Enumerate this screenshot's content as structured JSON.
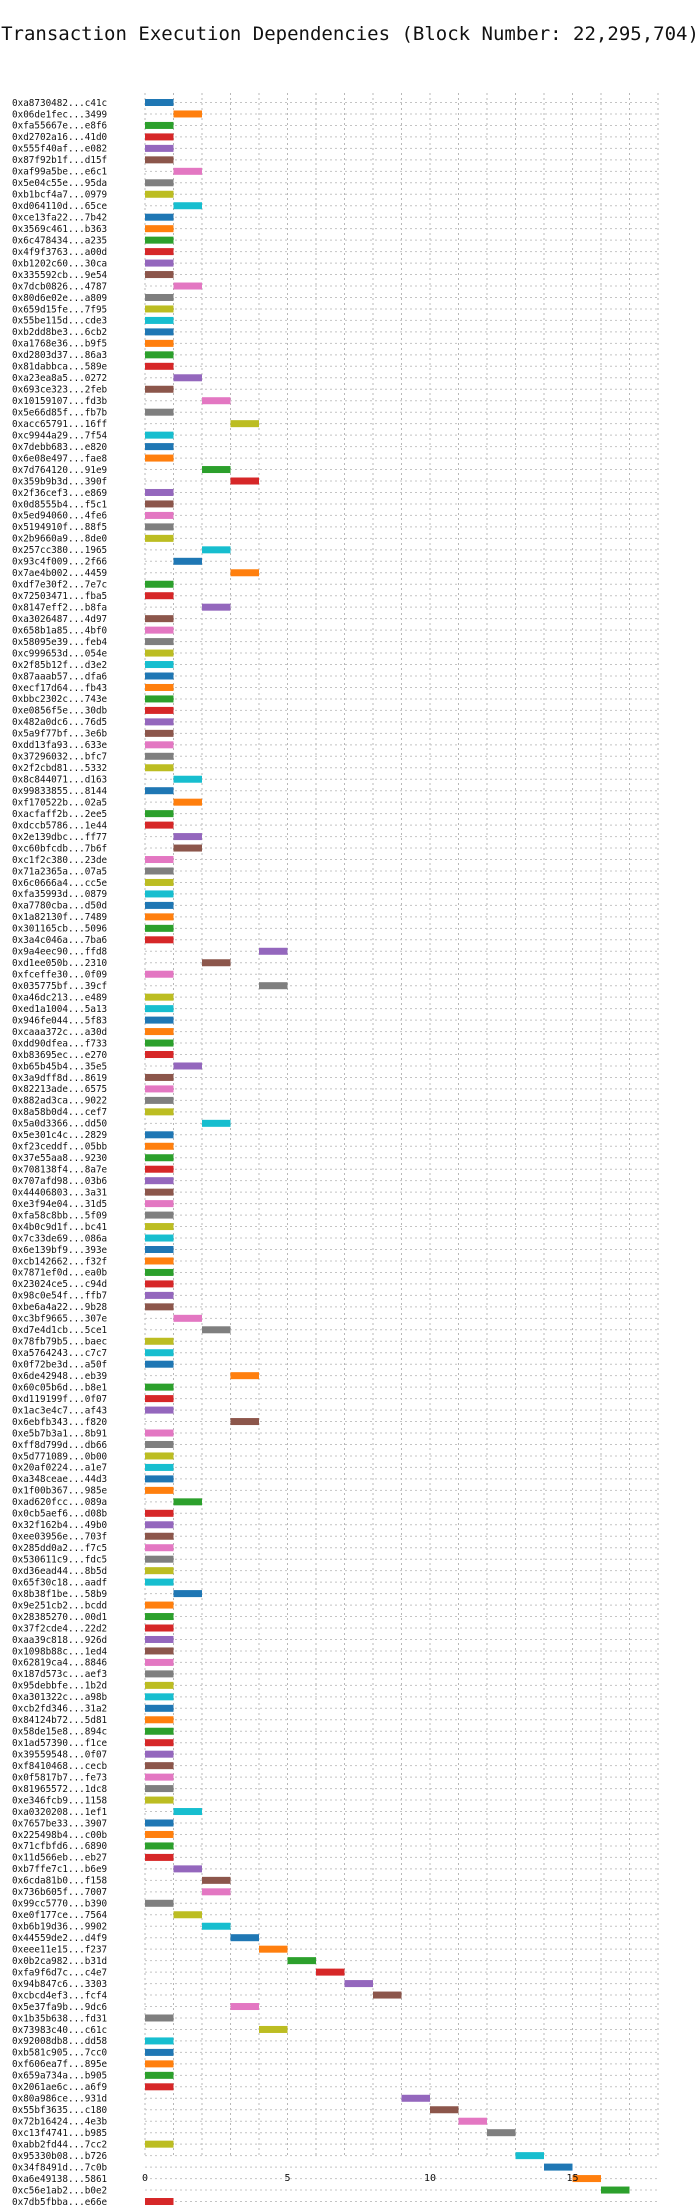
{
  "chart_data": {
    "type": "gantt",
    "title": "Transaction Execution Dependencies (Block Number: 22,295,704)",
    "xlabel": "",
    "ylabel": "",
    "xlim": [
      0,
      18
    ],
    "x_ticks": [
      0,
      5,
      10,
      15
    ],
    "grid": true,
    "palette": [
      "#1f77b4",
      "#ff7f0e",
      "#2ca02c",
      "#d62728",
      "#9467bd",
      "#8c564b",
      "#e377c2",
      "#7f7f7f",
      "#bcbd22",
      "#17becf"
    ],
    "transactions": [
      {
        "label": "0xa8730482...c41c",
        "start": 0
      },
      {
        "label": "0x06de1fec...3499",
        "start": 1
      },
      {
        "label": "0xfa55667e...e8f6",
        "start": 0
      },
      {
        "label": "0xd2702a16...41d0",
        "start": 0
      },
      {
        "label": "0x555f40af...e082",
        "start": 0
      },
      {
        "label": "0x87f92b1f...d15f",
        "start": 0
      },
      {
        "label": "0xaf99a5be...e6c1",
        "start": 1
      },
      {
        "label": "0x5e04c55e...95da",
        "start": 0
      },
      {
        "label": "0xb1bcf4a7...0979",
        "start": 0
      },
      {
        "label": "0xd064110d...65ce",
        "start": 1
      },
      {
        "label": "0xce13fa22...7b42",
        "start": 0
      },
      {
        "label": "0x3569c461...b363",
        "start": 0
      },
      {
        "label": "0x6c478434...a235",
        "start": 0
      },
      {
        "label": "0x4f9f3763...a00d",
        "start": 0
      },
      {
        "label": "0xb1202c60...30ca",
        "start": 0
      },
      {
        "label": "0x335592cb...9e54",
        "start": 0
      },
      {
        "label": "0x7dcb0826...4787",
        "start": 1
      },
      {
        "label": "0x80d6e02e...a809",
        "start": 0
      },
      {
        "label": "0x659d15fe...7f95",
        "start": 0
      },
      {
        "label": "0x55be115d...cde3",
        "start": 0
      },
      {
        "label": "0xb2dd8be3...6cb2",
        "start": 0
      },
      {
        "label": "0xa1768e36...b9f5",
        "start": 0
      },
      {
        "label": "0xd2803d37...86a3",
        "start": 0
      },
      {
        "label": "0x81dabbca...589e",
        "start": 0
      },
      {
        "label": "0xa23ea8a5...0272",
        "start": 1
      },
      {
        "label": "0x693ce323...2feb",
        "start": 0
      },
      {
        "label": "0x10159107...fd3b",
        "start": 2
      },
      {
        "label": "0x5e66d85f...fb7b",
        "start": 0
      },
      {
        "label": "0xacc65791...16ff",
        "start": 3
      },
      {
        "label": "0xc9944a29...7f54",
        "start": 0
      },
      {
        "label": "0x7debb683...e820",
        "start": 0
      },
      {
        "label": "0x6e08e497...fae8",
        "start": 0
      },
      {
        "label": "0x7d764120...91e9",
        "start": 2
      },
      {
        "label": "0x359b9b3d...390f",
        "start": 3
      },
      {
        "label": "0x2f36cef3...e869",
        "start": 0
      },
      {
        "label": "0x0d8555b4...f5c1",
        "start": 0
      },
      {
        "label": "0x5ed94060...4fe6",
        "start": 0
      },
      {
        "label": "0x5194910f...88f5",
        "start": 0
      },
      {
        "label": "0x2b9660a9...8de0",
        "start": 0
      },
      {
        "label": "0x257cc380...1965",
        "start": 2
      },
      {
        "label": "0x93c4f009...2f66",
        "start": 1
      },
      {
        "label": "0x7ae4b002...4459",
        "start": 3
      },
      {
        "label": "0xdf7e30f2...7e7c",
        "start": 0
      },
      {
        "label": "0x72503471...fba5",
        "start": 0
      },
      {
        "label": "0x8147eff2...b8fa",
        "start": 2
      },
      {
        "label": "0xa3026487...4d97",
        "start": 0
      },
      {
        "label": "0x658b1a85...4bf0",
        "start": 0
      },
      {
        "label": "0x58095e39...feb4",
        "start": 0
      },
      {
        "label": "0xc999653d...054e",
        "start": 0
      },
      {
        "label": "0x2f85b12f...d3e2",
        "start": 0
      },
      {
        "label": "0x87aaab57...dfa6",
        "start": 0
      },
      {
        "label": "0xecf17d64...fb43",
        "start": 0
      },
      {
        "label": "0xbbc2302c...743e",
        "start": 0
      },
      {
        "label": "0xe0856f5e...30db",
        "start": 0
      },
      {
        "label": "0x482a0dc6...76d5",
        "start": 0
      },
      {
        "label": "0x5a9f77bf...3e6b",
        "start": 0
      },
      {
        "label": "0xdd13fa93...633e",
        "start": 0
      },
      {
        "label": "0x37296032...bfc7",
        "start": 0
      },
      {
        "label": "0x2f2cbd81...5332",
        "start": 0
      },
      {
        "label": "0x8c844071...d163",
        "start": 1
      },
      {
        "label": "0x99833855...8144",
        "start": 0
      },
      {
        "label": "0xf170522b...02a5",
        "start": 1
      },
      {
        "label": "0xacfaff2b...2ee5",
        "start": 0
      },
      {
        "label": "0xdccb5786...1e44",
        "start": 0
      },
      {
        "label": "0x2e139dbc...ff77",
        "start": 1
      },
      {
        "label": "0xc60bfcdb...7b6f",
        "start": 1
      },
      {
        "label": "0xc1f2c380...23de",
        "start": 0
      },
      {
        "label": "0x71a2365a...07a5",
        "start": 0
      },
      {
        "label": "0x6c0666a4...cc5e",
        "start": 0
      },
      {
        "label": "0xfa35993d...0879",
        "start": 0
      },
      {
        "label": "0xa7780cba...d50d",
        "start": 0
      },
      {
        "label": "0x1a82130f...7489",
        "start": 0
      },
      {
        "label": "0x301165cb...5096",
        "start": 0
      },
      {
        "label": "0x3a4c046a...7ba6",
        "start": 0
      },
      {
        "label": "0x9a4eec90...ffd8",
        "start": 4
      },
      {
        "label": "0xd1ee050b...2310",
        "start": 2
      },
      {
        "label": "0xfceffe30...0f09",
        "start": 0
      },
      {
        "label": "0x035775bf...39cf",
        "start": 4
      },
      {
        "label": "0xa46dc213...e489",
        "start": 0
      },
      {
        "label": "0xed1a1004...5a13",
        "start": 0
      },
      {
        "label": "0x946fe044...5f83",
        "start": 0
      },
      {
        "label": "0xcaaa372c...a30d",
        "start": 0
      },
      {
        "label": "0xdd90dfea...f733",
        "start": 0
      },
      {
        "label": "0xb83695ec...e270",
        "start": 0
      },
      {
        "label": "0xb65b45b4...35e5",
        "start": 1
      },
      {
        "label": "0x3a9dff8d...8619",
        "start": 0
      },
      {
        "label": "0x82213ade...6575",
        "start": 0
      },
      {
        "label": "0x882ad3ca...9022",
        "start": 0
      },
      {
        "label": "0x8a58b0d4...cef7",
        "start": 0
      },
      {
        "label": "0x5a0d3366...dd50",
        "start": 2
      },
      {
        "label": "0x5e301c4c...2829",
        "start": 0
      },
      {
        "label": "0xf23ceddf...05bb",
        "start": 0
      },
      {
        "label": "0x37e55aa8...9230",
        "start": 0
      },
      {
        "label": "0x708138f4...8a7e",
        "start": 0
      },
      {
        "label": "0x707afd98...03b6",
        "start": 0
      },
      {
        "label": "0x44406803...3a31",
        "start": 0
      },
      {
        "label": "0xe3f94e04...31d5",
        "start": 0
      },
      {
        "label": "0xfa58c8bb...5f09",
        "start": 0
      },
      {
        "label": "0x4b0c9d1f...bc41",
        "start": 0
      },
      {
        "label": "0x7c33de69...086a",
        "start": 0
      },
      {
        "label": "0x6e139bf9...393e",
        "start": 0
      },
      {
        "label": "0xcb142662...f32f",
        "start": 0
      },
      {
        "label": "0x7871ef0d...ea0b",
        "start": 0
      },
      {
        "label": "0x23024ce5...c94d",
        "start": 0
      },
      {
        "label": "0x98c0e54f...ffb7",
        "start": 0
      },
      {
        "label": "0xbe6a4a22...9b28",
        "start": 0
      },
      {
        "label": "0xc3bf9665...307e",
        "start": 1
      },
      {
        "label": "0xd7e4d1cb...5ce1",
        "start": 2
      },
      {
        "label": "0x78fb79b5...baec",
        "start": 0
      },
      {
        "label": "0xa5764243...c7c7",
        "start": 0
      },
      {
        "label": "0x0f72be3d...a50f",
        "start": 0
      },
      {
        "label": "0x6de42948...eb39",
        "start": 3
      },
      {
        "label": "0x60c05b6d...b8e1",
        "start": 0
      },
      {
        "label": "0xd119199f...0f07",
        "start": 0
      },
      {
        "label": "0x1ac3e4c7...af43",
        "start": 0
      },
      {
        "label": "0x6ebfb343...f820",
        "start": 3
      },
      {
        "label": "0xe5b7b3a1...8b91",
        "start": 0
      },
      {
        "label": "0xff8d799d...db66",
        "start": 0
      },
      {
        "label": "0x5d771089...0b00",
        "start": 0
      },
      {
        "label": "0x20af0224...a1e7",
        "start": 0
      },
      {
        "label": "0xa348ceae...44d3",
        "start": 0
      },
      {
        "label": "0x1f00b367...985e",
        "start": 0
      },
      {
        "label": "0xad620fcc...089a",
        "start": 1
      },
      {
        "label": "0x0cb5aef6...d08b",
        "start": 0
      },
      {
        "label": "0x32f162b4...49b0",
        "start": 0
      },
      {
        "label": "0xee03956e...703f",
        "start": 0
      },
      {
        "label": "0x285dd0a2...f7c5",
        "start": 0
      },
      {
        "label": "0x530611c9...fdc5",
        "start": 0
      },
      {
        "label": "0xd36ead44...8b5d",
        "start": 0
      },
      {
        "label": "0x65f30c18...aadf",
        "start": 0
      },
      {
        "label": "0x8b38f1be...58b9",
        "start": 1
      },
      {
        "label": "0x9e251cb2...bcdd",
        "start": 0
      },
      {
        "label": "0x28385270...00d1",
        "start": 0
      },
      {
        "label": "0x37f2cde4...22d2",
        "start": 0
      },
      {
        "label": "0xaa39c818...926d",
        "start": 0
      },
      {
        "label": "0x1098b88c...1ed4",
        "start": 0
      },
      {
        "label": "0x62819ca4...8846",
        "start": 0
      },
      {
        "label": "0x187d573c...aef3",
        "start": 0
      },
      {
        "label": "0x95debbfe...1b2d",
        "start": 0
      },
      {
        "label": "0xa301322c...a98b",
        "start": 0
      },
      {
        "label": "0xcb2fd346...31a2",
        "start": 0
      },
      {
        "label": "0x84124b72...5d81",
        "start": 0
      },
      {
        "label": "0x58de15e8...894c",
        "start": 0
      },
      {
        "label": "0x1ad57390...f1ce",
        "start": 0
      },
      {
        "label": "0x39559548...0f07",
        "start": 0
      },
      {
        "label": "0xf8410468...cecb",
        "start": 0
      },
      {
        "label": "0x0f5817b7...fe73",
        "start": 0
      },
      {
        "label": "0x81965572...1dc8",
        "start": 0
      },
      {
        "label": "0xe346fcb9...1158",
        "start": 0
      },
      {
        "label": "0xa0320208...1ef1",
        "start": 1
      },
      {
        "label": "0x7657be33...3907",
        "start": 0
      },
      {
        "label": "0x225498b4...c00b",
        "start": 0
      },
      {
        "label": "0x71cfbfd6...6890",
        "start": 0
      },
      {
        "label": "0x11d566eb...eb27",
        "start": 0
      },
      {
        "label": "0xb7ffe7c1...b6e9",
        "start": 1
      },
      {
        "label": "0x6cda81b0...f158",
        "start": 2
      },
      {
        "label": "0x736b605f...7007",
        "start": 2
      },
      {
        "label": "0x99cc5770...b390",
        "start": 0
      },
      {
        "label": "0xe0f177ce...7564",
        "start": 1
      },
      {
        "label": "0xb6b19d36...9902",
        "start": 2
      },
      {
        "label": "0x44559de2...d4f9",
        "start": 3
      },
      {
        "label": "0xeee11e15...f237",
        "start": 4
      },
      {
        "label": "0x0b2ca982...b31d",
        "start": 5
      },
      {
        "label": "0xfa9f6d7c...c4e7",
        "start": 6
      },
      {
        "label": "0x94b847c6...3303",
        "start": 7
      },
      {
        "label": "0xcbcd4ef3...fcf4",
        "start": 8
      },
      {
        "label": "0x5e37fa9b...9dc6",
        "start": 3
      },
      {
        "label": "0x1b35b638...fd31",
        "start": 0
      },
      {
        "label": "0x73983c40...c61c",
        "start": 4
      },
      {
        "label": "0x92008db8...dd58",
        "start": 0
      },
      {
        "label": "0xb581c905...7cc0",
        "start": 0
      },
      {
        "label": "0xf606ea7f...895e",
        "start": 0
      },
      {
        "label": "0x659a734a...b905",
        "start": 0
      },
      {
        "label": "0x2061ae6c...a6f9",
        "start": 0
      },
      {
        "label": "0x80a986ce...931d",
        "start": 9
      },
      {
        "label": "0x55bf3635...c180",
        "start": 10
      },
      {
        "label": "0x72b16424...4e3b",
        "start": 11
      },
      {
        "label": "0xc13f4741...b985",
        "start": 12
      },
      {
        "label": "0xabb2fd44...7cc2",
        "start": 0
      },
      {
        "label": "0x95330b08...b726",
        "start": 13
      },
      {
        "label": "0x34f8491d...7c0b",
        "start": 14
      },
      {
        "label": "0xa6e49138...5861",
        "start": 15
      },
      {
        "label": "0xc56e1ab2...b0e2",
        "start": 16
      },
      {
        "label": "0x7db5fbba...e66e",
        "start": 0
      }
    ]
  }
}
